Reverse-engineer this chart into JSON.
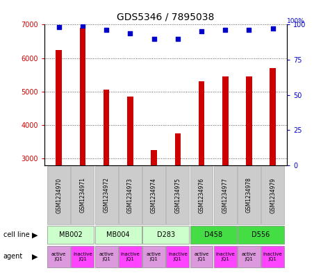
{
  "title": "GDS5346 / 7895038",
  "samples": [
    "GSM1234970",
    "GSM1234971",
    "GSM1234972",
    "GSM1234973",
    "GSM1234974",
    "GSM1234975",
    "GSM1234976",
    "GSM1234977",
    "GSM1234978",
    "GSM1234979"
  ],
  "counts": [
    6250,
    6900,
    5050,
    4850,
    3250,
    3750,
    5300,
    5450,
    5450,
    5700
  ],
  "percentiles": [
    98,
    99,
    96,
    94,
    90,
    90,
    95,
    96,
    96,
    97
  ],
  "bar_color": "#cc0000",
  "dot_color": "#0000cc",
  "ylim_left": [
    2800,
    7000
  ],
  "ylim_right": [
    0,
    100
  ],
  "yticks_left": [
    3000,
    4000,
    5000,
    6000,
    7000
  ],
  "yticks_right": [
    0,
    25,
    50,
    75,
    100
  ],
  "cell_lines": [
    {
      "label": "MB002",
      "start": 0,
      "end": 2,
      "color": "#ccffcc"
    },
    {
      "label": "MB004",
      "start": 2,
      "end": 4,
      "color": "#ccffcc"
    },
    {
      "label": "D283",
      "start": 4,
      "end": 6,
      "color": "#ccffcc"
    },
    {
      "label": "D458",
      "start": 6,
      "end": 8,
      "color": "#44dd44"
    },
    {
      "label": "D556",
      "start": 8,
      "end": 10,
      "color": "#44dd44"
    }
  ],
  "agents": [
    {
      "label": "active\nJQ1",
      "color": "#dd99dd"
    },
    {
      "label": "inactive\nJQ1",
      "color": "#ff44ff"
    },
    {
      "label": "active\nJQ1",
      "color": "#dd99dd"
    },
    {
      "label": "inactive\nJQ1",
      "color": "#ff44ff"
    },
    {
      "label": "active\nJQ1",
      "color": "#dd99dd"
    },
    {
      "label": "inactive\nJQ1",
      "color": "#ff44ff"
    },
    {
      "label": "active\nJQ1",
      "color": "#dd99dd"
    },
    {
      "label": "inactive\nJQ1",
      "color": "#ff44ff"
    },
    {
      "label": "active\nJQ1",
      "color": "#dd99dd"
    },
    {
      "label": "inactive\nJQ1",
      "color": "#ff44ff"
    }
  ],
  "bar_width": 0.25,
  "background_color": "#ffffff",
  "grid_color": "#555555",
  "tick_fontsize": 7,
  "title_fontsize": 10,
  "sample_fontsize": 5.5,
  "cell_fontsize": 7,
  "agent_fontsize": 5,
  "legend_fontsize": 7
}
